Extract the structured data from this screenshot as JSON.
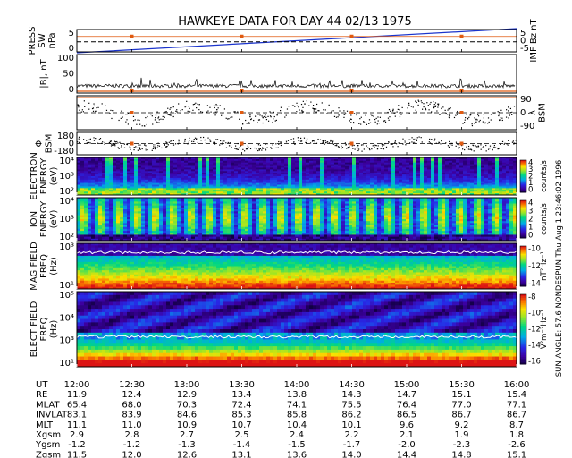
{
  "chart_data": {
    "type": "multi-panel",
    "title": "HAWKEYE DATA FOR DAY  44 02/13 1975",
    "side_caption": "SUN ANGLE:  57.6 NONDESPUN  Thu Aug  1 23:46:02 1996",
    "x_ticks": [
      "12:00",
      "12:30",
      "13:00",
      "13:30",
      "14:00",
      "14:30",
      "15:00",
      "15:30",
      "16:00"
    ],
    "panels": [
      {
        "id": "sw-press-imf-bz",
        "ylabel_left": [
          "PRESS",
          "SW",
          "nPa"
        ],
        "ylabel_right": [
          "IMF Bz nT"
        ],
        "left_ticks": [
          "5",
          "0"
        ],
        "right_ticks": [
          "5",
          "0",
          "-5"
        ],
        "left_color": "#1a33cc",
        "right_color": "#e05a10",
        "series": [
          {
            "line": "ramp",
            "color": "#1a33cc",
            "y_start": -0.5,
            "y_end": 6.5
          },
          {
            "line": "dashed",
            "color": "#000000",
            "y": 3.0
          },
          {
            "markers": "points",
            "color": "#e05a10",
            "x": [
              "12:30",
              "13:30",
              "14:30",
              "15:30"
            ]
          }
        ]
      },
      {
        "id": "b-magnitude",
        "ylabel_left": [
          "|B|, nT"
        ],
        "left_ticks": [
          "100",
          "50",
          "0"
        ],
        "ylim": [
          0,
          110
        ]
      },
      {
        "id": "lambda-bsm",
        "ylabel_right": [
          "λ",
          "BSM"
        ],
        "right_ticks": [
          "90",
          "0",
          "-90"
        ],
        "ylim": [
          -90,
          90
        ]
      },
      {
        "id": "phi-bsm",
        "ylabel_left": [
          "Φ",
          "BSM"
        ],
        "left_ticks": [
          "180",
          "0",
          "-180"
        ],
        "ylim": [
          -180,
          180
        ]
      },
      {
        "id": "electron-spectrogram",
        "ylabel_left": [
          "ELECTRON",
          "ENERGY",
          "(eV)"
        ],
        "left_ticks": [
          "10⁴",
          "10³",
          "10²"
        ],
        "colorbar_ticks": [
          "4",
          "3",
          "2",
          "1",
          "0"
        ],
        "colorbar_label": "counts/s"
      },
      {
        "id": "ion-spectrogram",
        "ylabel_left": [
          "ION",
          "ENERGY",
          "(eV)"
        ],
        "left_ticks": [
          "10⁴",
          "10³",
          "10²"
        ],
        "colorbar_ticks": [
          "4",
          "3",
          "2",
          "1",
          "0"
        ],
        "colorbar_label": "counts/s"
      },
      {
        "id": "mag-field-spectrogram",
        "ylabel_left": [
          "MAG FIELD",
          "FREQ",
          "(Hz)"
        ],
        "left_ticks": [
          "10³",
          "10¹"
        ],
        "colorbar_ticks": [
          "-10",
          "-12",
          "-14"
        ],
        "colorbar_label": "nT²Hz⁻¹"
      },
      {
        "id": "elect-field-spectrogram",
        "ylabel_left": [
          "ELECT FIELD",
          "FREQ",
          "(Hz)"
        ],
        "left_ticks": [
          "10⁵",
          "10⁴",
          "10³",
          "10¹"
        ],
        "colorbar_ticks": [
          "-8",
          "-10",
          "-12",
          "-14",
          "-16"
        ],
        "colorbar_label": "V²m⁻²Hz⁻¹"
      }
    ],
    "ephemeris_table": {
      "type": "table",
      "rows": [
        {
          "label": "UT",
          "values": [
            "12:00",
            "12:30",
            "13:00",
            "13:30",
            "14:00",
            "14:30",
            "15:00",
            "15:30",
            "16:00"
          ]
        },
        {
          "label": "RE",
          "values": [
            "11.9",
            "12.4",
            "12.9",
            "13.4",
            "13.8",
            "14.3",
            "14.7",
            "15.1",
            "15.4"
          ]
        },
        {
          "label": "MLAT",
          "values": [
            "65.4",
            "68.0",
            "70.3",
            "72.4",
            "74.1",
            "75.5",
            "76.4",
            "77.0",
            "77.1"
          ]
        },
        {
          "label": "INVLAT",
          "values": [
            "83.1",
            "83.9",
            "84.6",
            "85.3",
            "85.8",
            "86.2",
            "86.5",
            "86.7",
            "86.7"
          ]
        },
        {
          "label": "MLT",
          "values": [
            "11.1",
            "11.0",
            "10.9",
            "10.7",
            "10.4",
            "10.1",
            "9.6",
            "9.2",
            "8.7"
          ]
        },
        {
          "label": "Xgsm",
          "values": [
            "2.9",
            "2.8",
            "2.7",
            "2.5",
            "2.4",
            "2.2",
            "2.1",
            "1.9",
            "1.8"
          ]
        },
        {
          "label": "Ygsm",
          "values": [
            "-1.2",
            "-1.2",
            "-1.3",
            "-1.4",
            "-1.5",
            "-1.7",
            "-2.0",
            "-2.3",
            "-2.6"
          ]
        },
        {
          "label": "Zgsm",
          "values": [
            "11.5",
            "12.0",
            "12.6",
            "13.1",
            "13.6",
            "14.0",
            "14.4",
            "14.8",
            "15.1"
          ]
        }
      ]
    }
  }
}
